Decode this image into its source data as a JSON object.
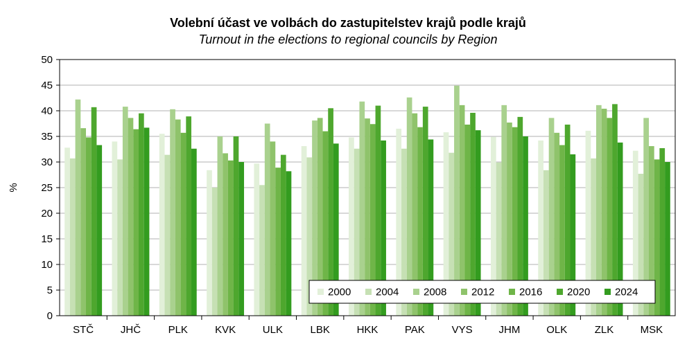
{
  "chart_data": {
    "type": "bar",
    "title": "Volební účast ve volbách do zastupitelstev krajů podle krajů",
    "subtitle": "Turnout in the elections to regional councils by Region",
    "ylabel": "%",
    "ylim": [
      0,
      50
    ],
    "yticks": [
      0,
      5,
      10,
      15,
      20,
      25,
      30,
      35,
      40,
      45,
      50
    ],
    "grid": true,
    "legend_position": "bottom-right",
    "categories": [
      "STČ",
      "JHČ",
      "PLK",
      "KVK",
      "ULK",
      "LBK",
      "HKK",
      "PAK",
      "VYS",
      "JHM",
      "OLK",
      "ZLK",
      "MSK"
    ],
    "series": [
      {
        "name": "2000",
        "color": "#e2f0d9",
        "values": [
          32.8,
          34.0,
          35.5,
          28.4,
          29.7,
          33.1,
          34.8,
          36.5,
          35.8,
          34.9,
          34.2,
          36.1,
          32.2
        ]
      },
      {
        "name": "2004",
        "color": "#c6e0b4",
        "values": [
          30.7,
          30.5,
          31.4,
          25.0,
          25.5,
          30.9,
          32.6,
          32.6,
          31.8,
          29.9,
          28.4,
          30.7,
          27.7
        ]
      },
      {
        "name": "2008",
        "color": "#a9d18e",
        "values": [
          42.2,
          40.8,
          40.3,
          35.0,
          37.5,
          38.1,
          41.8,
          42.6,
          44.9,
          41.1,
          38.6,
          41.1,
          38.6
        ]
      },
      {
        "name": "2012",
        "color": "#8fc36b",
        "values": [
          36.6,
          38.6,
          38.3,
          31.7,
          34.0,
          38.6,
          38.5,
          39.5,
          41.1,
          37.7,
          35.7,
          40.4,
          33.1
        ]
      },
      {
        "name": "2016",
        "color": "#6fb548",
        "values": [
          34.8,
          36.4,
          35.7,
          30.3,
          28.9,
          36.0,
          37.4,
          36.8,
          37.3,
          36.8,
          33.3,
          38.6,
          30.5
        ]
      },
      {
        "name": "2020",
        "color": "#4ea72e",
        "values": [
          40.7,
          39.5,
          38.9,
          35.0,
          31.4,
          40.5,
          41.0,
          40.8,
          39.6,
          38.8,
          37.3,
          41.3,
          32.7
        ]
      },
      {
        "name": "2024",
        "color": "#339c1f",
        "values": [
          33.3,
          36.7,
          32.6,
          30.0,
          28.2,
          33.6,
          34.2,
          34.4,
          36.2,
          35.0,
          31.5,
          33.8,
          30.0
        ]
      }
    ]
  }
}
